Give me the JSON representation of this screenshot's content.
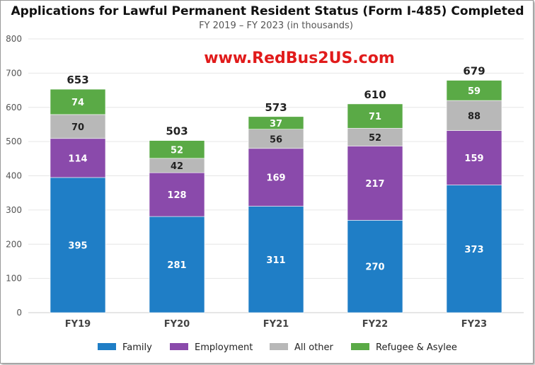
{
  "chart_data": {
    "type": "bar",
    "stacked": true,
    "title": "Applications for Lawful Permanent Resident Status (Form I-485) Completed",
    "subtitle": "FY 2019 – FY 2023 (in thousands)",
    "watermark": "www.RedBus2US.com",
    "categories": [
      "FY19",
      "FY20",
      "FY21",
      "FY22",
      "FY23"
    ],
    "series": [
      {
        "name": "Family",
        "color": "#1f7ec6",
        "label_color": "#ffffff",
        "values": [
          395,
          281,
          311,
          270,
          373
        ]
      },
      {
        "name": "Employment",
        "color": "#8a4aab",
        "label_color": "#ffffff",
        "values": [
          114,
          128,
          169,
          217,
          159
        ]
      },
      {
        "name": "All other",
        "color": "#b8b8b8",
        "label_color": "#222222",
        "values": [
          70,
          42,
          56,
          52,
          88
        ]
      },
      {
        "name": "Refugee & Asylee",
        "color": "#5aaa46",
        "label_color": "#ffffff",
        "values": [
          74,
          52,
          37,
          71,
          59
        ]
      }
    ],
    "totals": [
      653,
      503,
      573,
      610,
      679
    ],
    "ylim": [
      0,
      800
    ],
    "yticks": [
      0,
      100,
      200,
      300,
      400,
      500,
      600,
      700,
      800
    ],
    "grid": true,
    "legend_position": "bottom"
  }
}
